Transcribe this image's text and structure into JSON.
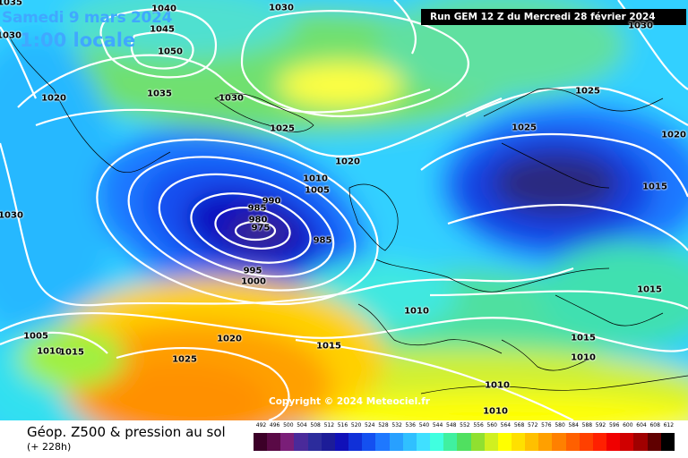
{
  "map": {
    "date_label": "Samedi 9 mars 2024",
    "time_label": "1:00 locale",
    "run_label": "Run GEM 12 Z du Mercredi 28 février 2024",
    "copyright": "Copyright © 2024 Meteociel.fr",
    "isobar_labels": [
      "1040",
      "1030",
      "1030",
      "1045",
      "1050",
      "1020",
      "1035",
      "1030",
      "1025",
      "1020",
      "1010",
      "1005",
      "990",
      "985",
      "980",
      "975",
      "985",
      "995",
      "1000",
      "1030",
      "1010",
      "1005",
      "1010",
      "1015",
      "1020",
      "1025",
      "1015",
      "1010",
      "1025",
      "1020",
      "1025",
      "1015",
      "1015",
      "1015",
      "1010",
      "1010",
      "1030",
      "1035"
    ]
  },
  "footer": {
    "title": "Géop. Z500 & pression au sol",
    "subtitle": "(+ 228h)"
  },
  "legend": {
    "values": [
      "492",
      "496",
      "500",
      "504",
      "508",
      "512",
      "516",
      "520",
      "524",
      "528",
      "532",
      "536",
      "540",
      "544",
      "548",
      "552",
      "556",
      "560",
      "564",
      "568",
      "572",
      "576",
      "580",
      "584",
      "588",
      "592",
      "596",
      "600",
      "604",
      "608",
      "612"
    ],
    "colors": [
      "#3c0028",
      "#5a0a46",
      "#7a1e78",
      "#4a2a9a",
      "#2c2c9c",
      "#1c1c98",
      "#1010b8",
      "#1030d8",
      "#1450f0",
      "#1e78ff",
      "#28a0ff",
      "#30c0ff",
      "#40e0ff",
      "#40ffe0",
      "#40f0a0",
      "#50e060",
      "#90e030",
      "#d0f020",
      "#ffff00",
      "#ffe000",
      "#ffc000",
      "#ffa000",
      "#ff8000",
      "#ff6000",
      "#ff4000",
      "#ff2000",
      "#f00000",
      "#d00000",
      "#a00000",
      "#600000",
      "#000000"
    ]
  }
}
